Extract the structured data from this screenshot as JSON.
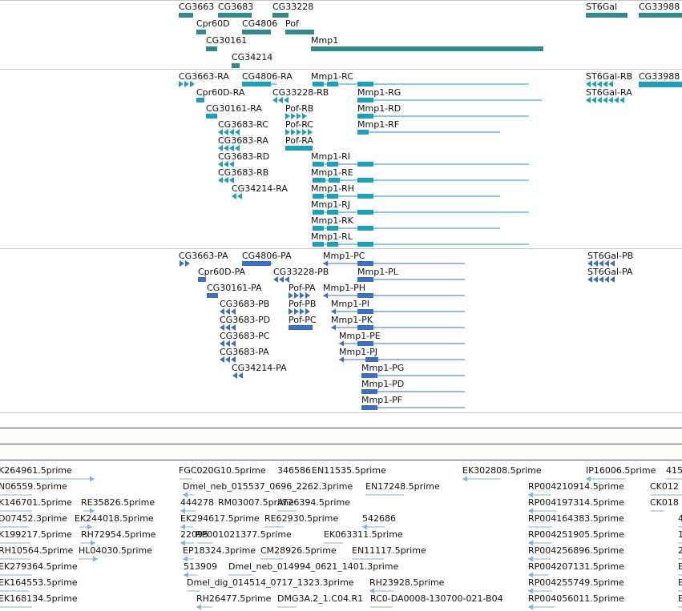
{
  "colors": {
    "gene": "#2e8b8b",
    "transcript": "#1aa0bd",
    "protein": "#3a6fc4",
    "est": "#7fb4de",
    "divider": "#c8c8c8",
    "strip": "#5050a0",
    "label": "#111111"
  },
  "tracks": {
    "genes": [
      "CG3663",
      "CG3683",
      "CG33228",
      "ST6Gal",
      "CG33988",
      "Cpr60D",
      "CG4806",
      "Pof",
      "CG30161",
      "Mmp1",
      "CG34214"
    ],
    "transcripts": [
      "CG3663-RA",
      "CG4806-RA",
      "Mmp1-RC",
      "ST6Gal-RB",
      "CG33988",
      "Cpr60D-RA",
      "CG33228-RB",
      "Mmp1-RG",
      "ST6Gal-RA",
      "CG30161-RA",
      "Pof-RB",
      "Mmp1-RD",
      "CG3683-RC",
      "Pof-RC",
      "Mmp1-RF",
      "CG3683-RA",
      "Pof-RA",
      "CG3683-RD",
      "Mmp1-RI",
      "CG3683-RB",
      "Mmp1-RE",
      "CG34214-RA",
      "Mmp1-RH",
      "Mmp1-RJ",
      "Mmp1-RK",
      "Mmp1-RL"
    ],
    "proteins": [
      "CG3663-PA",
      "CG4806-PA",
      "Mmp1-PC",
      "ST6Gal-PB",
      "Cpr60D-PA",
      "CG33228-PB",
      "Mmp1-PL",
      "ST6Gal-PA",
      "CG30161-PA",
      "Pof-PA",
      "Mmp1-PH",
      "CG3683-PB",
      "Pof-PB",
      "Mmp1-PI",
      "CG3683-PD",
      "Pof-PC",
      "Mmp1-PK",
      "CG3683-PC",
      "Mmp1-PE",
      "CG3683-PA",
      "Mmp1-PJ",
      "CG34214-PA",
      "Mmp1-PG",
      "Mmp1-PD",
      "Mmp1-PF"
    ],
    "ests": [
      "K264961.5prime",
      "FGC020G10.5prime",
      "346586",
      "EN11535.5prime",
      "EK302808.5prime",
      "IP16006.5prime",
      "415",
      "N06559.5prime",
      "Dmel_neb_015537_0696_2262.3prime",
      "EN17248.5prime",
      "RP004210914.5prime",
      "CK012",
      "K146701.5prime",
      "RE35826.5prime",
      "444278",
      "RM03007.5prime",
      "AT26394.5prime",
      "RP004197314.5prime",
      "CK018",
      "D07452.3prime",
      "EK244018.5prime",
      "EK294617.5prime",
      "RE62930.5prime",
      "542686",
      "RP004164383.5prime",
      "4",
      "K199217.5prime",
      "RH72954.5prime",
      "22095",
      "RP001021377.5prime",
      "EK063311.5prime",
      "RP004251905.5prime",
      "1",
      "RH10564.5prime",
      "HL04030.5prime",
      "EP18324.3prime",
      "CM28926.5prime",
      "EN11117.5prime",
      "RP004256896.5prime",
      "2",
      "EK279364.5prime",
      "513909",
      "Dmel_neb_014994_0621_1401.3prime",
      "RP004207131.5prime",
      "E",
      "EK164553.5prime",
      "Dmel_dig_014514_0717_1323.3prime",
      "RH23928.5prime",
      "RP004255749.5prime",
      "E",
      "EK168134.5prime",
      "RH26477.5prime",
      "DMG3A.2_1.C04.R1",
      "RC0-DA0008-130700-021-B04",
      "RP004056011.5prime",
      "E"
    ]
  }
}
